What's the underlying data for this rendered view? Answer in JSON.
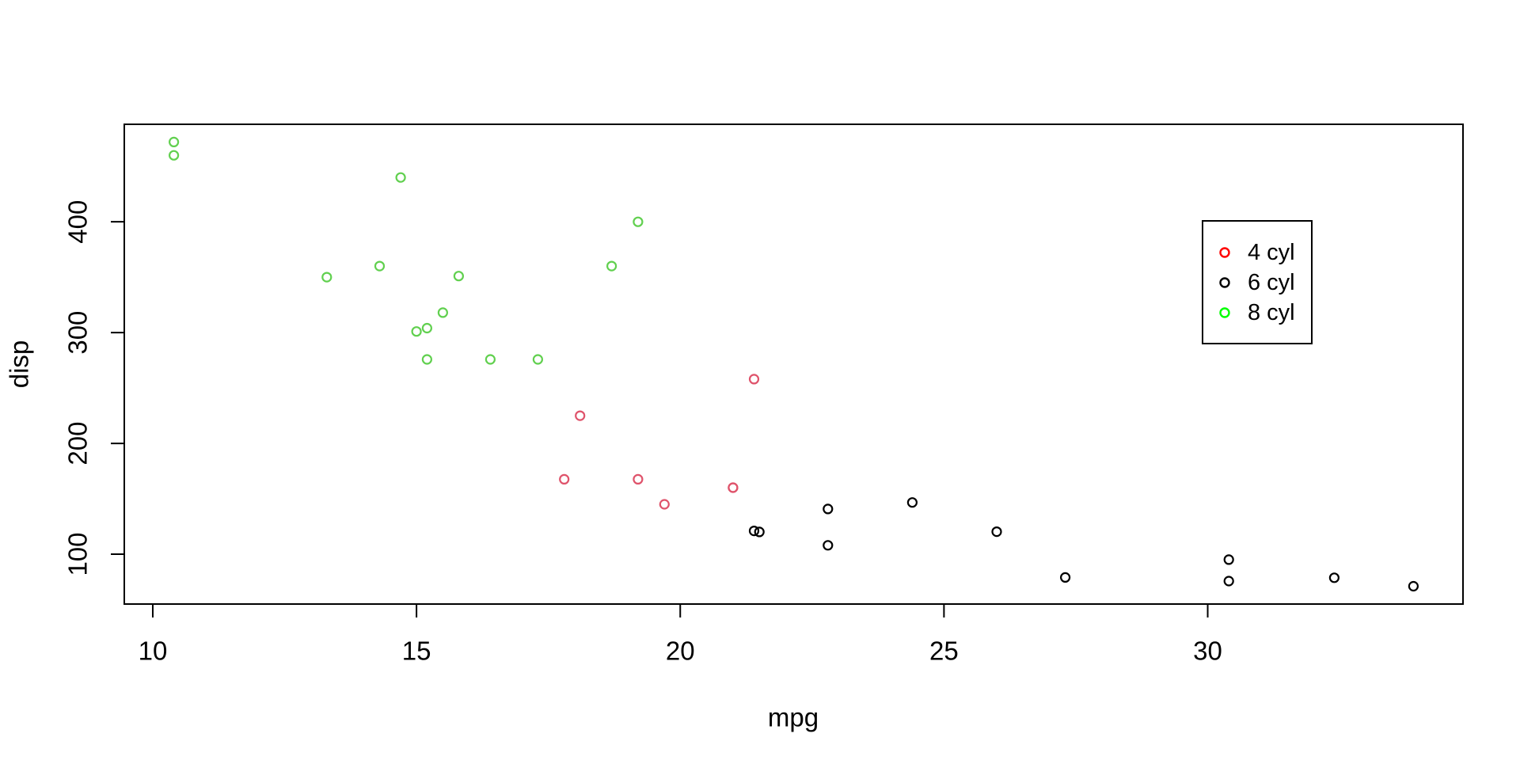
{
  "figure": {
    "background": "#ffffff",
    "title": ""
  },
  "chart_data": {
    "type": "scatter",
    "title": "",
    "xlabel": "mpg",
    "ylabel": "disp",
    "grid": false,
    "marker_style": "open-circle",
    "x_axis": {
      "min": 9.46,
      "max": 34.84,
      "ticks": [
        10,
        15,
        20,
        25,
        30
      ]
    },
    "y_axis": {
      "min": 55,
      "max": 488,
      "ticks": [
        100,
        200,
        300,
        400
      ]
    },
    "legend": {
      "position": "right-inside",
      "border": true,
      "border_color": "#000000"
    },
    "series": [
      {
        "legend_label": "4 cyl",
        "legend_marker_color": "#ff0000",
        "point_color": "#df536b",
        "points_mpg_disp": [
          [
            21.0,
            160.0
          ],
          [
            21.0,
            160.0
          ],
          [
            21.4,
            258.0
          ],
          [
            18.1,
            225.0
          ],
          [
            19.2,
            167.6
          ],
          [
            17.8,
            167.6
          ],
          [
            19.7,
            145.0
          ]
        ]
      },
      {
        "legend_label": "6 cyl",
        "legend_marker_color": "#000000",
        "point_color": "#000000",
        "points_mpg_disp": [
          [
            22.8,
            108.0
          ],
          [
            24.4,
            146.7
          ],
          [
            22.8,
            140.8
          ],
          [
            32.4,
            78.7
          ],
          [
            30.4,
            75.7
          ],
          [
            33.9,
            71.1
          ],
          [
            21.5,
            120.1
          ],
          [
            27.3,
            79.0
          ],
          [
            26.0,
            120.3
          ],
          [
            30.4,
            95.1
          ],
          [
            21.4,
            121.0
          ]
        ]
      },
      {
        "legend_label": "8 cyl",
        "legend_marker_color": "#00ff00",
        "point_color": "#61d04f",
        "points_mpg_disp": [
          [
            18.7,
            360.0
          ],
          [
            14.3,
            360.0
          ],
          [
            16.4,
            275.8
          ],
          [
            17.3,
            275.8
          ],
          [
            15.2,
            275.8
          ],
          [
            10.4,
            472.0
          ],
          [
            10.4,
            460.0
          ],
          [
            14.7,
            440.0
          ],
          [
            15.5,
            318.0
          ],
          [
            15.2,
            304.0
          ],
          [
            13.3,
            350.0
          ],
          [
            19.2,
            400.0
          ],
          [
            15.8,
            351.0
          ],
          [
            15.0,
            301.0
          ]
        ]
      }
    ]
  }
}
